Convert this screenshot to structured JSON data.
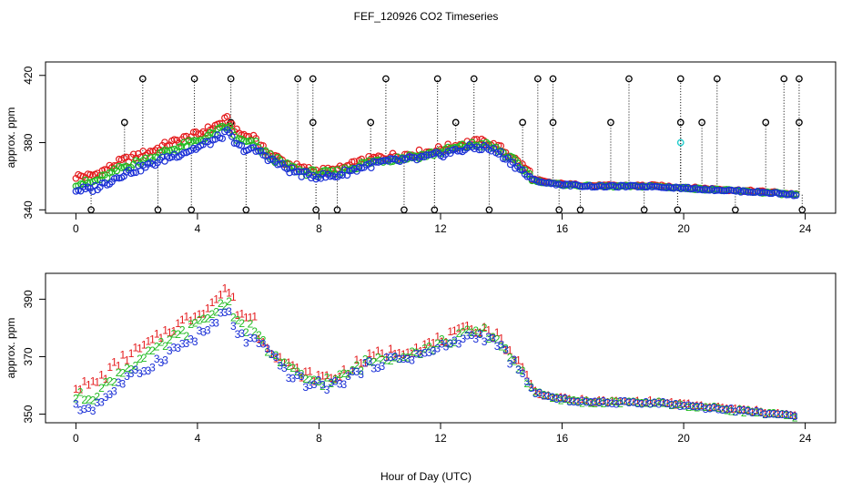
{
  "chart_data": [
    {
      "type": "scatter",
      "title": "FEF_120926  CO2 Timeseries",
      "xlabel": "",
      "ylabel": "approx. ppm",
      "xlim": [
        -1.0,
        25.0
      ],
      "ylim": [
        338,
        428
      ],
      "xticks": [
        "0",
        "4",
        "8",
        "12",
        "16",
        "20",
        "24"
      ],
      "yticks": [
        "340",
        "380",
        "420"
      ],
      "ytick_values": [
        340,
        380,
        420
      ],
      "xtick_values": [
        0,
        4,
        8,
        12,
        16,
        20,
        24
      ],
      "colors": {
        "series1": "#e41a1c",
        "series2": "#22bb22",
        "series3": "#1a2fd6",
        "spike": "#000000",
        "cyan": "#22cccc"
      },
      "base_curve": {
        "x": [
          0.0,
          0.5,
          1.0,
          1.5,
          2.0,
          2.5,
          3.0,
          3.5,
          4.0,
          4.5,
          5.0,
          5.3,
          5.6,
          6.0,
          6.5,
          7.0,
          7.5,
          8.0,
          8.5,
          9.0,
          9.5,
          10.0,
          10.5,
          11.0,
          11.5,
          12.0,
          12.5,
          13.0,
          13.5,
          14.0,
          14.5,
          15.0,
          15.5,
          16.0,
          17.0,
          18.0,
          19.0,
          20.0,
          21.0,
          22.0,
          23.0,
          23.6
        ],
        "y": [
          352.0,
          352.0,
          356.0,
          361.0,
          364.0,
          367.0,
          371.0,
          374.0,
          377.0,
          381.0,
          386.0,
          378.0,
          376.0,
          375.0,
          369.0,
          364.0,
          361.0,
          360.0,
          360.0,
          363.0,
          366.0,
          368.0,
          369.0,
          370.0,
          371.0,
          373.0,
          375.0,
          377.0,
          377.0,
          373.0,
          366.0,
          358.0,
          356.0,
          355.0,
          354.0,
          354.0,
          354.0,
          353.0,
          352.0,
          351.0,
          350.0,
          349.0
        ]
      },
      "series_offsets": {
        "series1": [
          8,
          1
        ],
        "series2": [
          4,
          0
        ],
        "series3": [
          0,
          0
        ]
      },
      "spikes_up": [
        2.2,
        3.9,
        5.1,
        7.3,
        7.8,
        10.2,
        11.9,
        13.1,
        15.2,
        15.7,
        18.2,
        19.9,
        21.1,
        23.3,
        23.8
      ],
      "spikes_up_value": 418,
      "spikes_mid": [
        1.6,
        5.1,
        7.8,
        9.7,
        12.5,
        14.7,
        15.7,
        17.6,
        19.9,
        20.6,
        22.7,
        23.8
      ],
      "spikes_mid_value": 392,
      "spikes_low": [
        0.5,
        2.7,
        3.8,
        5.6,
        7.9,
        8.6,
        10.8,
        11.8,
        13.6,
        15.9,
        16.6,
        18.7,
        19.8,
        21.7,
        23.9
      ],
      "spikes_low_value": 340,
      "cyan_points": [
        [
          19.9,
          380
        ]
      ]
    },
    {
      "type": "scatter",
      "title": "",
      "xlabel": "Hour of Day (UTC)",
      "ylabel": "approx. ppm",
      "xlim": [
        -1.0,
        25.0
      ],
      "ylim": [
        347,
        399
      ],
      "xticks": [
        "0",
        "4",
        "8",
        "12",
        "16",
        "20",
        "24"
      ],
      "yticks": [
        "350",
        "370",
        "390"
      ],
      "ytick_values": [
        350,
        370,
        390
      ],
      "xtick_values": [
        0,
        4,
        8,
        12,
        16,
        20,
        24
      ],
      "marker_labels": [
        "1",
        "2",
        "3"
      ],
      "series": [
        {
          "name": "1",
          "color": "#e41a1c",
          "offset": [
            8,
            1
          ]
        },
        {
          "name": "2",
          "color": "#22bb22",
          "offset": [
            4,
            0
          ]
        },
        {
          "name": "3",
          "color": "#1a2fd6",
          "offset": [
            0,
            0
          ]
        }
      ],
      "base_curve": {
        "x": [
          0.0,
          0.5,
          1.0,
          1.5,
          2.0,
          2.5,
          3.0,
          3.5,
          4.0,
          4.5,
          5.0,
          5.3,
          5.6,
          6.0,
          6.5,
          7.0,
          7.5,
          8.0,
          8.5,
          9.0,
          9.5,
          10.0,
          10.5,
          11.0,
          11.5,
          12.0,
          12.5,
          13.0,
          13.5,
          14.0,
          14.5,
          15.0,
          15.5,
          16.0,
          17.0,
          18.0,
          19.0,
          20.0,
          21.0,
          22.0,
          23.0,
          23.6
        ],
        "y": [
          352.0,
          352.0,
          356.0,
          361.0,
          364.0,
          367.0,
          371.0,
          374.0,
          377.0,
          381.0,
          386.0,
          378.0,
          376.0,
          375.0,
          369.0,
          364.0,
          361.0,
          360.0,
          360.0,
          363.0,
          366.0,
          368.0,
          369.0,
          370.0,
          371.0,
          373.0,
          375.0,
          377.0,
          377.0,
          373.0,
          366.0,
          358.0,
          356.0,
          355.0,
          354.0,
          354.0,
          354.0,
          353.0,
          352.0,
          351.0,
          350.0,
          349.0
        ]
      }
    }
  ]
}
